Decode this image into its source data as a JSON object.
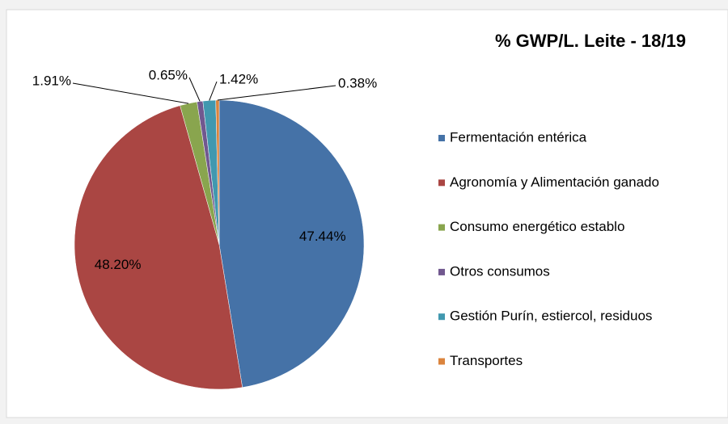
{
  "chart_data": {
    "type": "pie",
    "title": "% GWP/L. Leite - 18/19",
    "categories": [
      "Fermentación entérica",
      "Agronomía y Alimentación ganado",
      "Consumo energético establo",
      "Otros consumos",
      "Gestión Purín, estiercol, residuos",
      "Transportes"
    ],
    "values": [
      47.44,
      48.2,
      1.91,
      0.65,
      1.42,
      0.38
    ],
    "value_labels": [
      "47.44%",
      "48.20%",
      "1.91%",
      "0.65%",
      "1.42%",
      "0.38%"
    ],
    "colors": [
      "#4572a7",
      "#aa4643",
      "#89a54e",
      "#71588f",
      "#4198af",
      "#db843d"
    ],
    "legend": "right"
  }
}
